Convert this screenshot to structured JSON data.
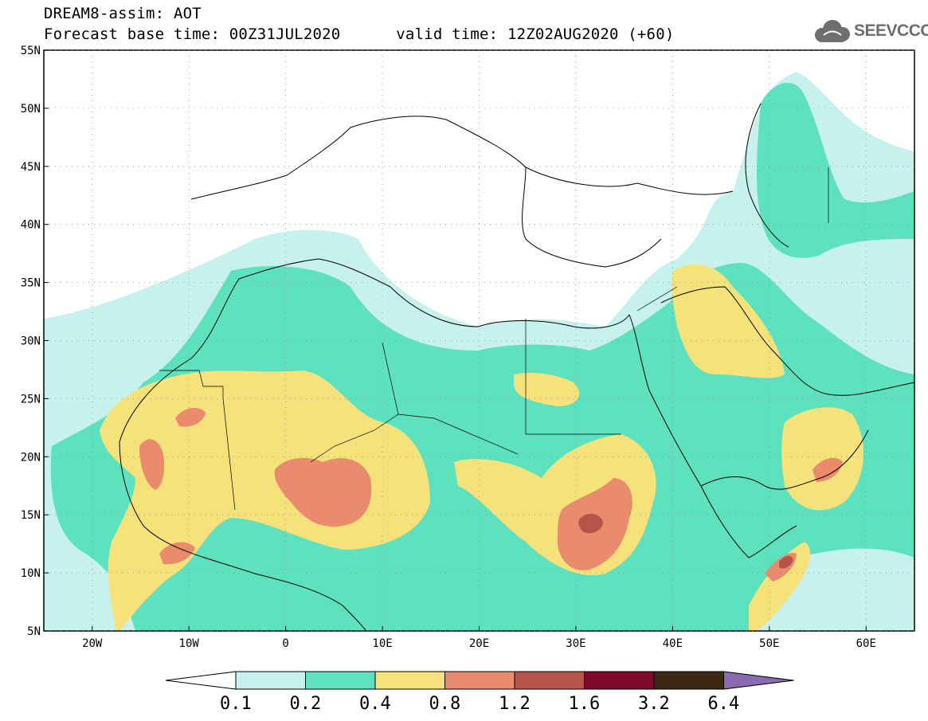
{
  "header": {
    "title": "DREAM8-assim: AOT",
    "base_label": "Forecast base time: 00Z31JUL2020",
    "valid_label": "valid time: 12Z02AUG2020 (+60)"
  },
  "logo": {
    "text": "SEEVCCC",
    "icon": "cloud-icon",
    "color": "#6e6e6e"
  },
  "map": {
    "projection": "lat-lon",
    "lon_range": [
      -25,
      65
    ],
    "lat_range": [
      5,
      55
    ],
    "lat_ticks": [
      {
        "value": 55,
        "label": "55N"
      },
      {
        "value": 50,
        "label": "50N"
      },
      {
        "value": 45,
        "label": "45N"
      },
      {
        "value": 40,
        "label": "40N"
      },
      {
        "value": 35,
        "label": "35N"
      },
      {
        "value": 30,
        "label": "30N"
      },
      {
        "value": 25,
        "label": "25N"
      },
      {
        "value": 20,
        "label": "20N"
      },
      {
        "value": 15,
        "label": "15N"
      },
      {
        "value": 10,
        "label": "10N"
      },
      {
        "value": 5,
        "label": "5N"
      }
    ],
    "lon_ticks": [
      {
        "value": -20,
        "label": "20W"
      },
      {
        "value": -10,
        "label": "10W"
      },
      {
        "value": 0,
        "label": "0"
      },
      {
        "value": 10,
        "label": "10E"
      },
      {
        "value": 20,
        "label": "20E"
      },
      {
        "value": 30,
        "label": "30E"
      },
      {
        "value": 40,
        "label": "40E"
      },
      {
        "value": 50,
        "label": "50E"
      },
      {
        "value": 60,
        "label": "60E"
      }
    ],
    "gridlines": "dotted"
  },
  "colorbar": {
    "levels": [
      "0.1",
      "0.2",
      "0.4",
      "0.8",
      "1.2",
      "1.6",
      "3.2",
      "6.4"
    ],
    "colors": [
      "#ffffff",
      "#c6f1ec",
      "#5ee1bf",
      "#f6e27a",
      "#eb8b6e",
      "#b6544a",
      "#800a2d",
      "#3c2814",
      "#8a6bb1"
    ]
  }
}
